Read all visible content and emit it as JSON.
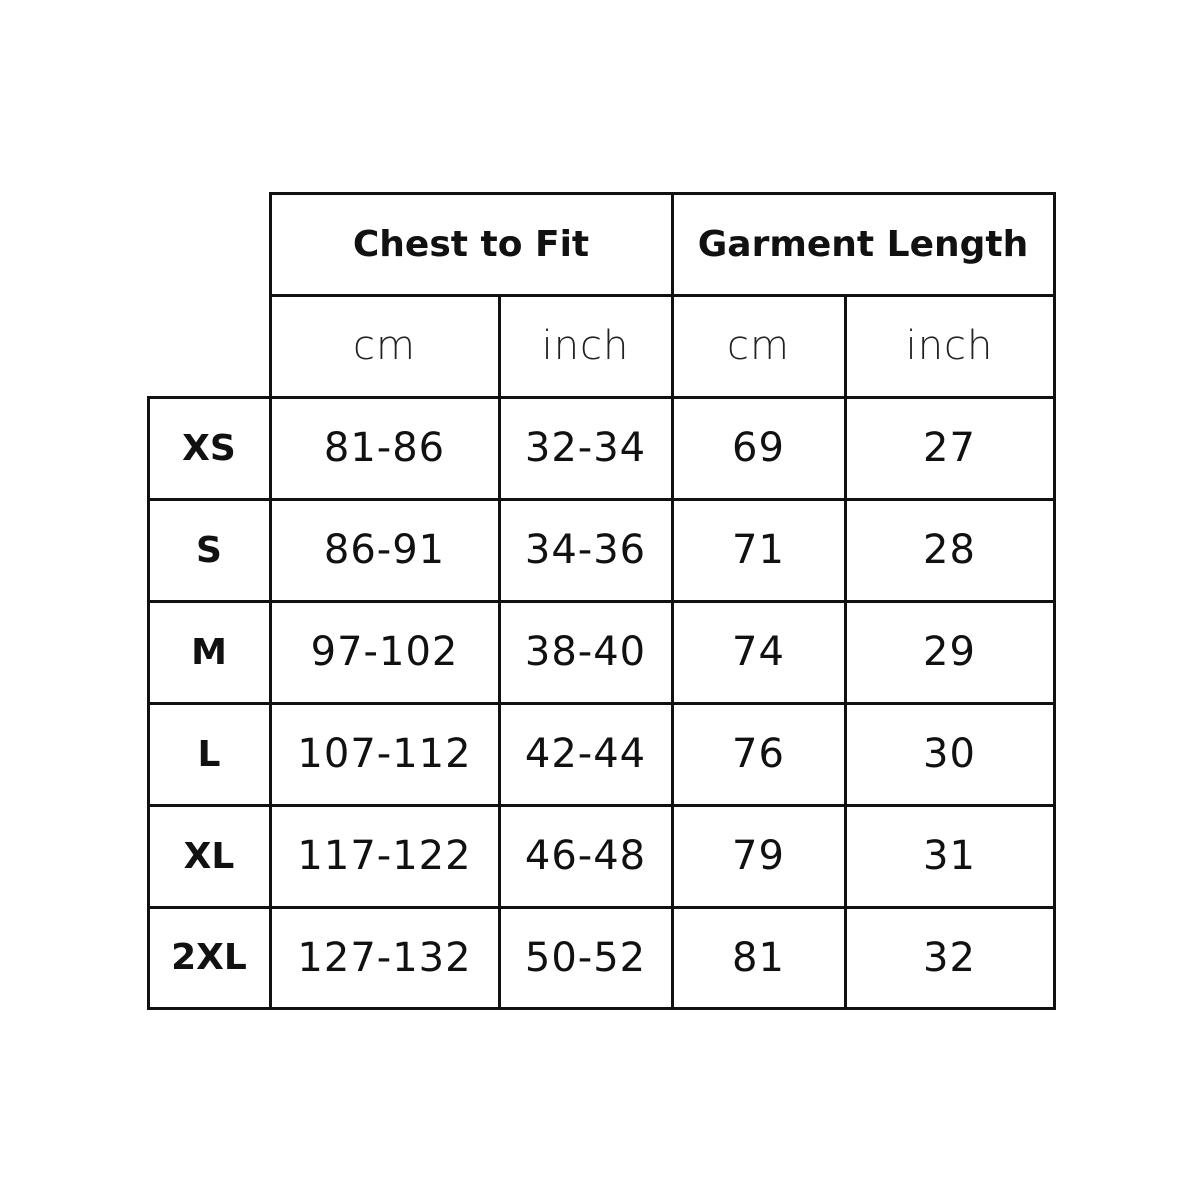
{
  "table": {
    "groups": [
      "Chest to Fit",
      "Garment Length"
    ],
    "units": [
      "cm",
      "inch",
      "cm",
      "inch"
    ],
    "rows": [
      {
        "size": "XS",
        "values": [
          "81-86",
          "32-34",
          "69",
          "27"
        ]
      },
      {
        "size": "S",
        "values": [
          "86-91",
          "34-36",
          "71",
          "28"
        ]
      },
      {
        "size": "M",
        "values": [
          "97-102",
          "38-40",
          "74",
          "29"
        ]
      },
      {
        "size": "L",
        "values": [
          "107-112",
          "42-44",
          "76",
          "30"
        ]
      },
      {
        "size": "XL",
        "values": [
          "117-122",
          "46-48",
          "79",
          "31"
        ]
      },
      {
        "size": "2XL",
        "values": [
          "127-132",
          "50-52",
          "81",
          "32"
        ]
      }
    ]
  }
}
